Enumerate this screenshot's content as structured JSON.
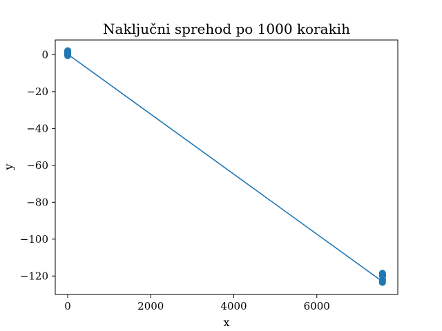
{
  "chart_data": {
    "type": "line",
    "title": "Naključni sprehod po 1000 korakih",
    "xlabel": "x",
    "ylabel": "y",
    "xlim": [
      -300,
      7950
    ],
    "ylim": [
      -130,
      8
    ],
    "x_ticks": [
      0,
      2000,
      4000,
      6000
    ],
    "x_tick_labels": [
      "0",
      "2000",
      "4000",
      "6000"
    ],
    "y_ticks": [
      0,
      -20,
      -40,
      -60,
      -80,
      -100,
      -120
    ],
    "y_tick_labels": [
      "0",
      "−20",
      "−40",
      "−60",
      "−80",
      "−100",
      "−120"
    ],
    "grid": false,
    "legend": "none",
    "color": "#1f77b4",
    "series": [
      {
        "points": [
          {
            "x": 0,
            "y": 0
          },
          {
            "x": 1,
            "y": 1
          },
          {
            "x": 0,
            "y": 2
          },
          {
            "x": -1,
            "y": 1
          },
          {
            "x": 0,
            "y": 0.5
          },
          {
            "x": 1,
            "y": 1.5
          },
          {
            "x": 0,
            "y": 2
          },
          {
            "x": 1,
            "y": 0
          },
          {
            "x": 0,
            "y": -0.5
          },
          {
            "x": -1,
            "y": 0.5
          },
          {
            "x": 0,
            "y": 1.5
          },
          {
            "x": 1,
            "y": 2.2
          },
          {
            "x": 0,
            "y": 1
          },
          {
            "x": 0,
            "y": 0.3
          },
          {
            "x": 7580,
            "y": -123
          },
          {
            "x": 7585,
            "y": -122
          },
          {
            "x": 7580,
            "y": -123.5
          },
          {
            "x": 7578,
            "y": -122.5
          },
          {
            "x": 7585,
            "y": -120
          },
          {
            "x": 7582,
            "y": -119
          },
          {
            "x": 7580,
            "y": -118.5
          },
          {
            "x": 7586,
            "y": -119.5
          },
          {
            "x": 7580,
            "y": -120
          },
          {
            "x": 7583,
            "y": -119
          }
        ]
      }
    ]
  }
}
